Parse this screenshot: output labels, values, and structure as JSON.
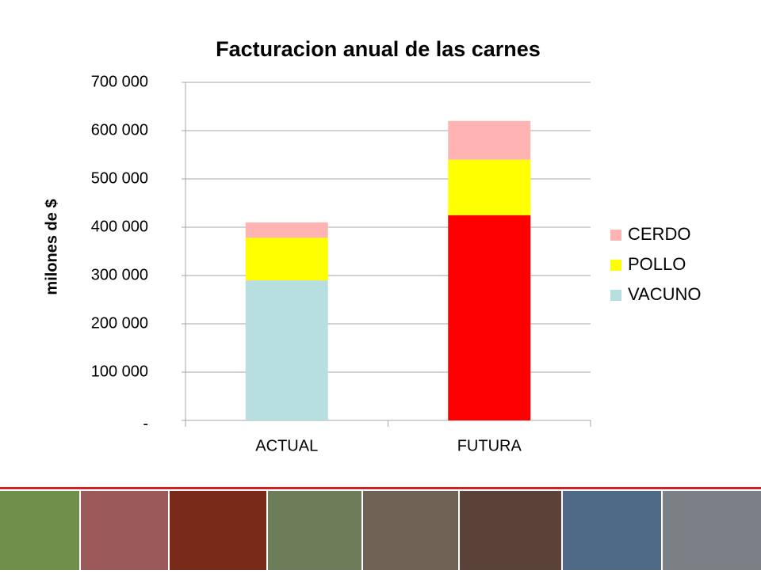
{
  "chart_data": {
    "type": "stacked-bar",
    "title": "Facturacion anual de las carnes",
    "y_label": "milones de $",
    "categories": [
      "ACTUAL",
      "FUTURA"
    ],
    "series": [
      {
        "name": "VACUNO",
        "color": "#b7dfe0",
        "colors": [
          "#b7dfe0",
          "#ff0000"
        ],
        "values": [
          290000,
          425000
        ]
      },
      {
        "name": "POLLO",
        "color": "#ffff00",
        "values": [
          88000,
          115000
        ]
      },
      {
        "name": "CERDO",
        "color": "#ffb3b3",
        "values": [
          32000,
          80000
        ]
      }
    ],
    "ylim": [
      0,
      700000
    ],
    "yticks": [
      {
        "value": 0,
        "label": "-"
      },
      {
        "value": 100000,
        "label": "100 000"
      },
      {
        "value": 200000,
        "label": "200 000"
      },
      {
        "value": 300000,
        "label": "300 000"
      },
      {
        "value": 400000,
        "label": "400 000"
      },
      {
        "value": 500000,
        "label": "500 000"
      },
      {
        "value": 600000,
        "label": "600 000"
      },
      {
        "value": 700000,
        "label": "700 000"
      }
    ],
    "grid": true,
    "legend": "right"
  }
}
